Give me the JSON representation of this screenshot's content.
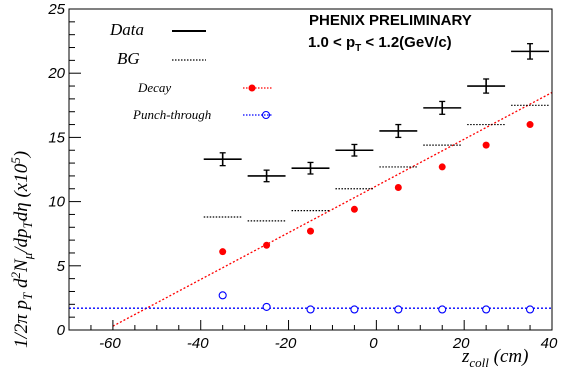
{
  "chart_data": {
    "type": "scatter",
    "title": "PHENIX PRELIMINARY",
    "subtitle": "1.0 < p_T < 1.2(GeV/c)",
    "xlabel": "z_coll (cm)",
    "ylabel": "1/2π p_T d²N_μ/dp_T dη (x10⁵)",
    "xlim": [
      -70,
      40
    ],
    "ylim": [
      0,
      25
    ],
    "x_ticks": [
      -60,
      -40,
      -20,
      0,
      20,
      40
    ],
    "y_ticks": [
      0,
      5,
      10,
      15,
      20,
      25
    ],
    "x_tick_labels": [
      "-60",
      "-40",
      "-20",
      "0",
      "20",
      "40"
    ],
    "y_tick_labels": [
      "0",
      "5",
      "10",
      "15",
      "20",
      "25"
    ],
    "bins": [
      [
        -40,
        -30
      ],
      [
        -30,
        -20
      ],
      [
        -20,
        -10
      ],
      [
        -10,
        0
      ],
      [
        0,
        10
      ],
      [
        10,
        20
      ],
      [
        20,
        30
      ],
      [
        30,
        40
      ]
    ],
    "legend_position": "top-left",
    "series": [
      {
        "name": "Data",
        "style": "solid-black-errorbar",
        "color": "#000000",
        "x": [
          -35,
          -25,
          -15,
          -5,
          5,
          15,
          25,
          35
        ],
        "y": [
          13.3,
          12.0,
          12.6,
          14.0,
          15.5,
          17.3,
          19.0,
          21.7
        ],
        "yerr": [
          0.5,
          0.45,
          0.45,
          0.45,
          0.5,
          0.5,
          0.55,
          0.6
        ]
      },
      {
        "name": "BG",
        "style": "dotted-black-step",
        "color": "#000000",
        "x": [
          -35,
          -25,
          -15,
          -5,
          5,
          15,
          25,
          35
        ],
        "y": [
          8.8,
          8.5,
          9.3,
          11.0,
          12.7,
          14.4,
          16.0,
          17.5
        ]
      },
      {
        "name": "Decay",
        "style": "red-filled-circle",
        "color": "#ff0000",
        "x": [
          -35,
          -25,
          -15,
          -5,
          5,
          15,
          25,
          35
        ],
        "y": [
          6.1,
          6.6,
          7.7,
          9.4,
          11.1,
          12.7,
          14.4,
          16.0
        ]
      },
      {
        "name": "Punch-through",
        "style": "blue-open-circle",
        "color": "#0000ff",
        "x": [
          -35,
          -25,
          -15,
          -5,
          5,
          15,
          25,
          35
        ],
        "y": [
          2.7,
          1.8,
          1.6,
          1.6,
          1.6,
          1.6,
          1.6,
          1.6
        ]
      }
    ],
    "fits": [
      {
        "name": "decay-fit",
        "color": "#ff0000",
        "points": [
          [
            -60,
            0.3
          ],
          [
            40,
            18.5
          ]
        ]
      },
      {
        "name": "punch-through-fit",
        "color": "#0000ff",
        "points": [
          [
            -70,
            1.7
          ],
          [
            40,
            1.7
          ]
        ]
      }
    ]
  }
}
